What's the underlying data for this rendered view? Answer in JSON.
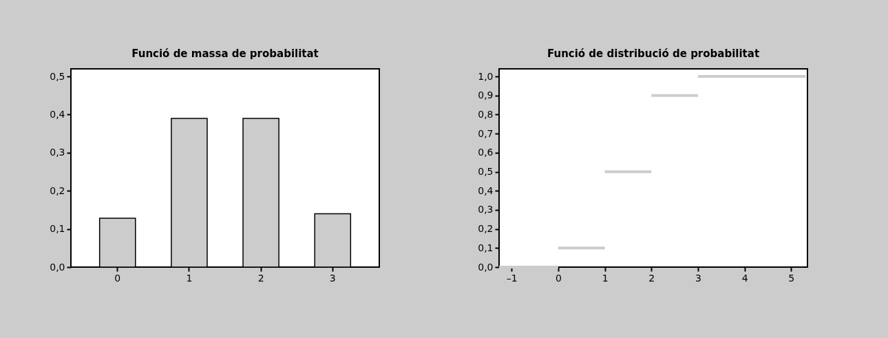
{
  "chart_data": [
    {
      "type": "bar",
      "title": "Funció de massa de probabilitat",
      "categories": [
        "0",
        "1",
        "2",
        "3"
      ],
      "values": [
        0.128,
        0.39,
        0.39,
        0.14
      ],
      "color": "#cccccc",
      "ylim": [
        0,
        0.52
      ],
      "yticks": [
        {
          "value": 0,
          "label": "0,0"
        },
        {
          "value": 0.1,
          "label": "0,1"
        },
        {
          "value": 0.2,
          "label": "0,2"
        },
        {
          "value": 0.3,
          "label": "0,3"
        },
        {
          "value": 0.4,
          "label": "0,4"
        },
        {
          "value": 0.5,
          "label": "0,5"
        }
      ]
    },
    {
      "type": "line",
      "title": "Funció de distribució de probabilitat",
      "marker": "none",
      "series": [
        {
          "color": "#cccccc",
          "x": [
            -1.27,
            0
          ],
          "values": [
            0,
            0
          ]
        },
        {
          "color": "#cccccc",
          "x": [
            0,
            1
          ],
          "values": [
            0.1,
            0.1
          ]
        },
        {
          "color": "#cccccc",
          "x": [
            1,
            2
          ],
          "values": [
            0.5,
            0.5
          ]
        },
        {
          "color": "#cccccc",
          "x": [
            2,
            3
          ],
          "values": [
            0.9,
            0.9
          ]
        },
        {
          "color": "#cccccc",
          "x": [
            3,
            5.31
          ],
          "values": [
            1,
            1
          ]
        }
      ],
      "xlim": [
        -1.27,
        5.35
      ],
      "xticks": [
        {
          "value": -1,
          "label": "–1"
        },
        0,
        1,
        2,
        3,
        4,
        5
      ],
      "ylim": [
        0,
        1.04
      ],
      "yticks": [
        {
          "value": 0,
          "label": "0,0"
        },
        {
          "value": 0.1,
          "label": "0,1"
        },
        {
          "value": 0.2,
          "label": "0,2"
        },
        {
          "value": 0.3,
          "label": "0,3"
        },
        {
          "value": 0.4,
          "label": "0,4"
        },
        {
          "value": 0.5,
          "label": "0,5"
        },
        {
          "value": 0.6,
          "label": "0,6"
        },
        {
          "value": 0.7,
          "label": "0,7"
        },
        {
          "value": 0.8,
          "label": "0,8"
        },
        {
          "value": 0.9,
          "label": "0,9"
        },
        {
          "value": 1,
          "label": "1,0"
        }
      ]
    }
  ]
}
